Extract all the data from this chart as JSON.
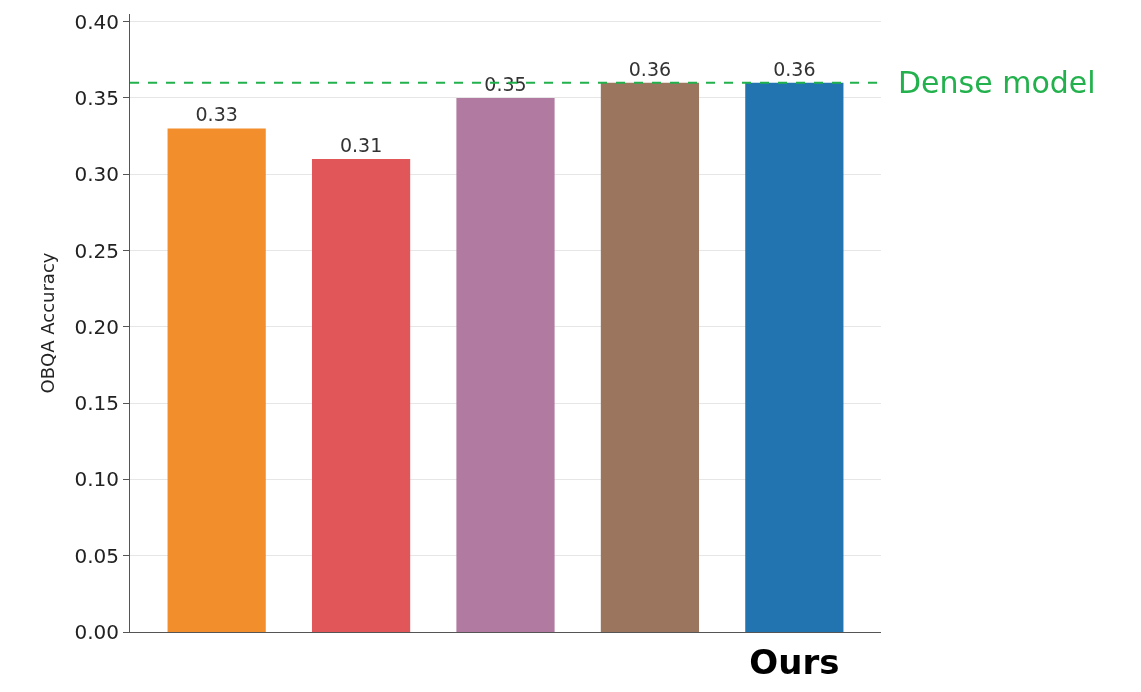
{
  "chart_data": {
    "type": "bar",
    "ylabel": "OBQA Accuracy",
    "categories": [
      null,
      null,
      null,
      null,
      "Ours"
    ],
    "values": [
      0.33,
      0.31,
      0.35,
      0.36,
      0.36
    ],
    "colors": [
      "#f28e2b",
      "#e15759",
      "#b07aa1",
      "#9c755f",
      "#2274b0"
    ],
    "data_labels": true,
    "ylim": [
      0,
      0.405
    ],
    "yticks": [
      {
        "value": 0,
        "label": "0.00"
      },
      {
        "value": 0.05,
        "label": "0.05"
      },
      {
        "value": 0.1,
        "label": "0.10"
      },
      {
        "value": 0.15,
        "label": "0.15"
      },
      {
        "value": 0.2,
        "label": "0.20"
      },
      {
        "value": 0.25,
        "label": "0.25"
      },
      {
        "value": 0.3,
        "label": "0.30"
      },
      {
        "value": 0.35,
        "label": "0.35"
      },
      {
        "value": 0.4,
        "label": "0.40"
      }
    ],
    "grid": "y",
    "ref_lines": [
      {
        "axis": "y",
        "value": 0.36,
        "label": "Dense model",
        "color": "#22b14c",
        "line_style": "dashed"
      }
    ]
  }
}
